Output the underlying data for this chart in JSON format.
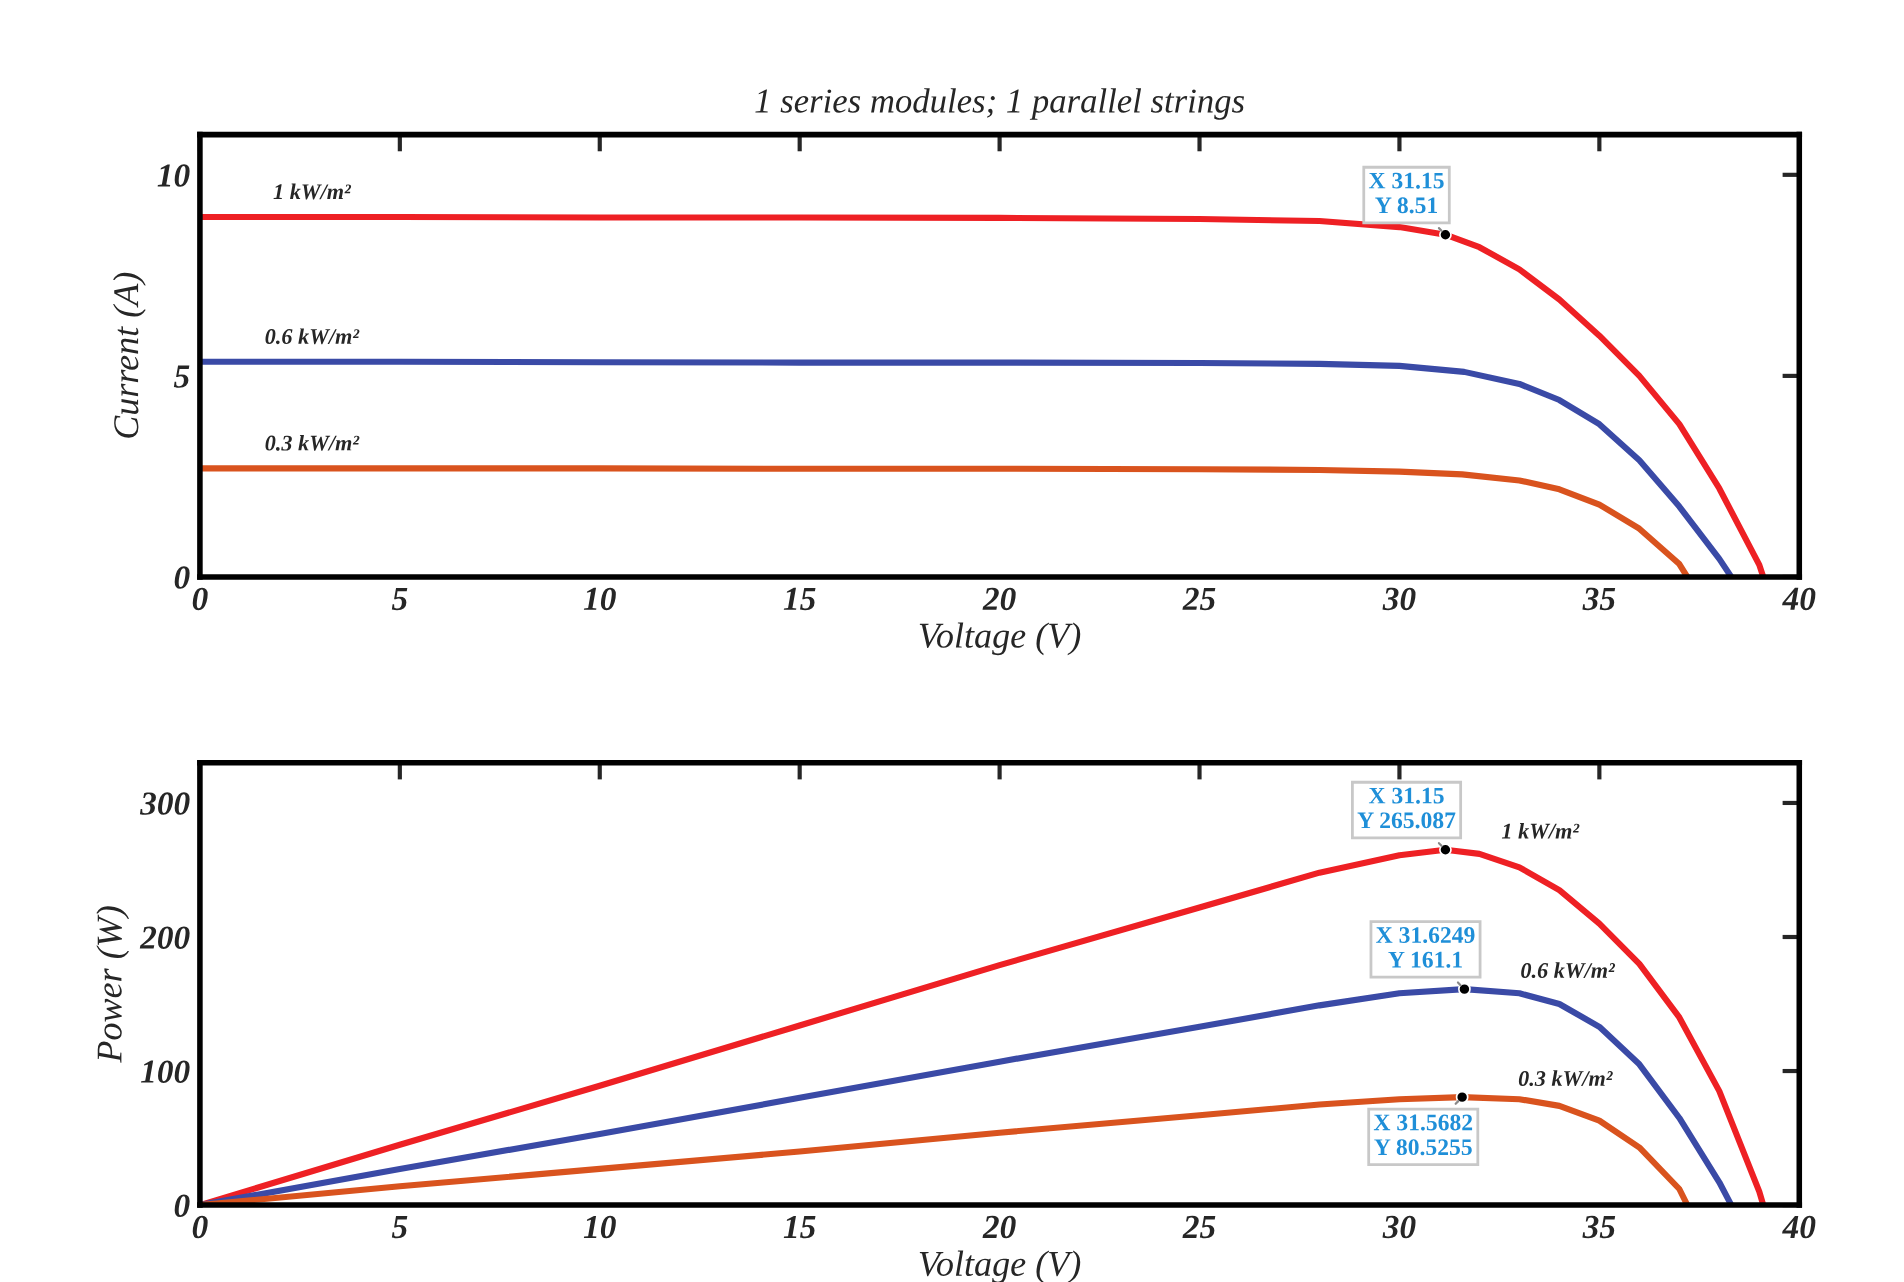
{
  "chart_data": [
    {
      "type": "line",
      "title": "1 series modules; 1 parallel strings",
      "xlabel": "Voltage (V)",
      "ylabel": "Current (A)",
      "xlim": [
        0,
        40
      ],
      "ylim": [
        0,
        11
      ],
      "xticks": [
        0,
        5,
        10,
        15,
        20,
        25,
        30,
        35,
        40
      ],
      "yticks": [
        0,
        5,
        10
      ],
      "grid": false,
      "legend": false,
      "series": [
        {
          "name": "1 kW/m²",
          "color": "#ee2024",
          "x": [
            0,
            5,
            10,
            15,
            20,
            25,
            28,
            30,
            31.15,
            32,
            33,
            34,
            35,
            36,
            37,
            38,
            39,
            39.1
          ],
          "values": [
            8.95,
            8.95,
            8.94,
            8.94,
            8.93,
            8.9,
            8.85,
            8.7,
            8.51,
            8.2,
            7.65,
            6.9,
            6.0,
            5.0,
            3.8,
            2.2,
            0.3,
            0
          ]
        },
        {
          "name": "0.6 kW/m²",
          "color": "#3a4aa6",
          "x": [
            0,
            5,
            10,
            15,
            20,
            25,
            28,
            30,
            31.62,
            33,
            34,
            35,
            36,
            37,
            38,
            38.3
          ],
          "values": [
            5.35,
            5.35,
            5.34,
            5.33,
            5.33,
            5.32,
            5.3,
            5.25,
            5.1,
            4.8,
            4.4,
            3.8,
            2.9,
            1.75,
            0.45,
            0
          ]
        },
        {
          "name": "0.3 kW/m²",
          "color": "#d9531e",
          "x": [
            0,
            5,
            10,
            15,
            20,
            25,
            28,
            30,
            31.57,
            33,
            34,
            35,
            36,
            37,
            37.2
          ],
          "values": [
            2.7,
            2.7,
            2.7,
            2.69,
            2.69,
            2.68,
            2.66,
            2.62,
            2.55,
            2.4,
            2.18,
            1.8,
            1.2,
            0.32,
            0
          ]
        }
      ],
      "annotations": [
        {
          "text": "X 31.15\nY 8.51",
          "x": 31.15,
          "y": 8.51
        }
      ]
    },
    {
      "type": "line",
      "xlabel": "Voltage (V)",
      "ylabel": "Power (W)",
      "xlim": [
        0,
        40
      ],
      "ylim": [
        0,
        330
      ],
      "xticks": [
        0,
        5,
        10,
        15,
        20,
        25,
        30,
        35,
        40
      ],
      "yticks": [
        0,
        100,
        200,
        300
      ],
      "grid": false,
      "legend": false,
      "series": [
        {
          "name": "1 kW/m²",
          "color": "#ee2024",
          "x": [
            0,
            5,
            10,
            15,
            20,
            25,
            28,
            30,
            31.15,
            32,
            33,
            34,
            35,
            36,
            37,
            38,
            39,
            39.1
          ],
          "values": [
            0,
            45,
            89,
            134,
            179,
            222,
            248,
            261,
            265.087,
            262,
            252,
            235,
            210,
            180,
            140,
            85,
            10,
            0
          ]
        },
        {
          "name": "0.6 kW/m²",
          "color": "#3a4aa6",
          "x": [
            0,
            5,
            10,
            15,
            20,
            25,
            28,
            30,
            31.6249,
            33,
            34,
            35,
            36,
            37,
            38,
            38.3
          ],
          "values": [
            0,
            27,
            53,
            80,
            107,
            133,
            149,
            158,
            161.1,
            158,
            150,
            133,
            105,
            65,
            17,
            0
          ]
        },
        {
          "name": "0.3 kW/m²",
          "color": "#d9531e",
          "x": [
            0,
            5,
            10,
            15,
            20,
            25,
            28,
            30,
            31.5682,
            33,
            34,
            35,
            36,
            37,
            37.2
          ],
          "values": [
            0,
            14,
            27,
            40,
            54,
            67,
            75,
            79,
            80.5255,
            79,
            74,
            63,
            43,
            12,
            0
          ]
        }
      ],
      "annotations": [
        {
          "text": "X 31.15\nY 265.087",
          "x": 31.15,
          "y": 265.087
        },
        {
          "text": "X 31.6249\nY 161.1",
          "x": 31.6249,
          "y": 161.1
        },
        {
          "text": "X 31.5682\nY 80.5255",
          "x": 31.5682,
          "y": 80.5255
        }
      ]
    }
  ]
}
